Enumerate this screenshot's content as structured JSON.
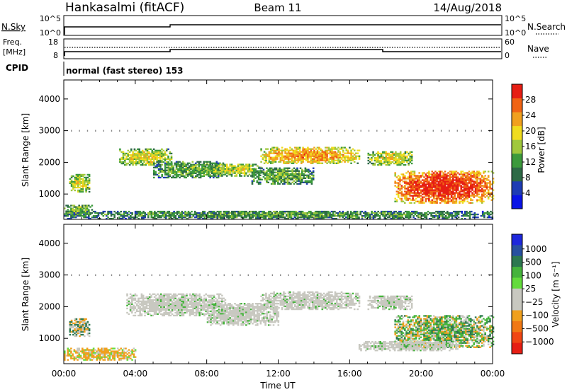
{
  "header": {
    "station": "Hankasalmi (fitACF)",
    "beam": "Beam 11",
    "date": "14/Aug/2018"
  },
  "top_panels": {
    "nsky_label": "N.Sky",
    "nsky_ticks": [
      "10^5",
      "10^0"
    ],
    "nsearch_label": "N.Search",
    "nsearch_ticks": [
      "10^5",
      "10^0"
    ],
    "freq_label_line1": "Freq.",
    "freq_label_line2": "[MHz]",
    "freq_ticks": [
      "18",
      "8"
    ],
    "nave_label": "Nave",
    "nave_ticks": [
      "60",
      "0"
    ],
    "cpid_label": "CPID",
    "cpid_text": "normal (fast stereo) 153"
  },
  "chart_data": [
    {
      "type": "heatmap",
      "name": "power",
      "ylabel": "Slant Range [km]",
      "xlabel": "Time UT",
      "x_ticks": [
        "00:00",
        "04:00",
        "08:00",
        "12:00",
        "16:00",
        "20:00",
        "00:00"
      ],
      "x_range_hours": [
        0,
        24
      ],
      "ylim": [
        200,
        4600
      ],
      "y_ticks": [
        "1000",
        "2000",
        "3000",
        "4000"
      ],
      "y_tick_values": [
        1000,
        2000,
        3000,
        4000
      ],
      "colorbar": {
        "label": "Power [dB]",
        "ticks": [
          "4",
          "8",
          "12",
          "16",
          "20",
          "24",
          "28"
        ],
        "tick_values": [
          4,
          8,
          12,
          16,
          20,
          24,
          28
        ],
        "range": [
          0,
          32
        ],
        "colors": [
          "#0a14e6",
          "#1e3cb4",
          "#2d6a46",
          "#3c9a3c",
          "#a0c83c",
          "#f0dc1e",
          "#f0a01e",
          "#f06414",
          "#e61e14"
        ]
      },
      "features": [
        {
          "t0": 0.0,
          "t1": 1.6,
          "r0": 300,
          "r1": 650,
          "intensity": 0.45
        },
        {
          "t0": 0.3,
          "t1": 1.4,
          "r0": 1050,
          "r1": 1600,
          "intensity": 0.55
        },
        {
          "t0": 3.1,
          "t1": 6.0,
          "r0": 1900,
          "r1": 2400,
          "intensity": 0.55
        },
        {
          "t0": 5.0,
          "t1": 9.0,
          "r0": 1500,
          "r1": 2000,
          "intensity": 0.4
        },
        {
          "t0": 8.0,
          "t1": 11.0,
          "r0": 1550,
          "r1": 1950,
          "intensity": 0.5
        },
        {
          "t0": 10.5,
          "t1": 14.0,
          "r0": 1300,
          "r1": 1800,
          "intensity": 0.4
        },
        {
          "t0": 11.0,
          "t1": 16.5,
          "r0": 1950,
          "r1": 2450,
          "intensity": 0.7
        },
        {
          "t0": 17.0,
          "t1": 19.5,
          "r0": 1900,
          "r1": 2350,
          "intensity": 0.55
        },
        {
          "t0": 18.5,
          "t1": 24.0,
          "r0": 700,
          "r1": 1700,
          "intensity": 0.9
        },
        {
          "t0": 0.0,
          "t1": 24.0,
          "r0": 200,
          "r1": 450,
          "intensity": 0.35
        }
      ]
    },
    {
      "type": "heatmap",
      "name": "velocity",
      "ylabel": "Slant Range [km]",
      "xlabel": "Time UT",
      "x_ticks": [
        "00:00",
        "04:00",
        "08:00",
        "12:00",
        "16:00",
        "20:00",
        "00:00"
      ],
      "x_range_hours": [
        0,
        24
      ],
      "ylim": [
        200,
        4600
      ],
      "y_ticks": [
        "1000",
        "2000",
        "3000",
        "4000"
      ],
      "y_tick_values": [
        1000,
        2000,
        3000,
        4000
      ],
      "colorbar": {
        "label": "Velocity [m s⁻¹]",
        "ticks": [
          "1000",
          "500",
          "100",
          "25",
          "−25",
          "−100",
          "−500",
          "−1000"
        ],
        "colors": [
          "#1e28dc",
          "#2850a0",
          "#2d7850",
          "#46b43c",
          "#64dc3c",
          "#c8c8c0",
          "#c8c8c0",
          "#f0a01e",
          "#f07814",
          "#f04614",
          "#e61e14"
        ]
      },
      "features": [
        {
          "t0": 0.0,
          "t1": 4.0,
          "r0": 300,
          "r1": 700,
          "tone": "orange"
        },
        {
          "t0": 0.3,
          "t1": 1.4,
          "r0": 1050,
          "r1": 1600,
          "tone": "mixed"
        },
        {
          "t0": 3.5,
          "t1": 9.0,
          "r0": 1700,
          "r1": 2400,
          "tone": "grey"
        },
        {
          "t0": 8.0,
          "t1": 12.0,
          "r0": 1400,
          "r1": 2100,
          "tone": "grey"
        },
        {
          "t0": 11.0,
          "t1": 16.5,
          "r0": 1900,
          "r1": 2450,
          "tone": "grey"
        },
        {
          "t0": 17.0,
          "t1": 19.5,
          "r0": 1900,
          "r1": 2350,
          "tone": "grey"
        },
        {
          "t0": 18.5,
          "t1": 24.0,
          "r0": 700,
          "r1": 1700,
          "tone": "green-orange"
        },
        {
          "t0": 16.5,
          "t1": 22.0,
          "r0": 600,
          "r1": 900,
          "tone": "grey"
        }
      ]
    }
  ],
  "dotted_line_km": 3000
}
